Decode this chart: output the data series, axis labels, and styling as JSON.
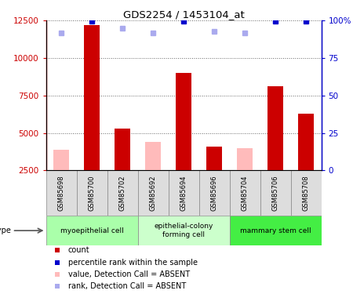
{
  "title": "GDS2254 / 1453104_at",
  "samples": [
    "GSM85698",
    "GSM85700",
    "GSM85702",
    "GSM85692",
    "GSM85694",
    "GSM85696",
    "GSM85704",
    "GSM85706",
    "GSM85708"
  ],
  "counts": [
    null,
    12200,
    5300,
    null,
    9000,
    4100,
    null,
    8100,
    6300
  ],
  "counts_absent": [
    3900,
    null,
    null,
    4400,
    null,
    null,
    4000,
    null,
    null
  ],
  "ranks_present": [
    null,
    99.5,
    null,
    null,
    99.5,
    null,
    null,
    99.5,
    99.5
  ],
  "ranks_absent": [
    92,
    null,
    95,
    92,
    null,
    93,
    92,
    null,
    null
  ],
  "count_color": "#cc0000",
  "count_absent_color": "#ffbbbb",
  "rank_color": "#0000cc",
  "rank_absent_color": "#aaaaee",
  "cell_types": [
    {
      "label": "myoepithelial cell",
      "start": 0,
      "end": 2,
      "color": "#aaffaa"
    },
    {
      "label": "epithelial-colony\nforming cell",
      "start": 3,
      "end": 5,
      "color": "#ccffcc"
    },
    {
      "label": "mammary stem cell",
      "start": 6,
      "end": 8,
      "color": "#44ee44"
    }
  ],
  "ylim_left": [
    2500,
    12500
  ],
  "ylim_right": [
    0,
    100
  ],
  "yticks_left": [
    2500,
    5000,
    7500,
    10000,
    12500
  ],
  "yticks_right": [
    0,
    25,
    50,
    75,
    100
  ],
  "yticklabels_right": [
    "0",
    "25",
    "50",
    "75",
    "100%"
  ],
  "bar_width": 0.5
}
